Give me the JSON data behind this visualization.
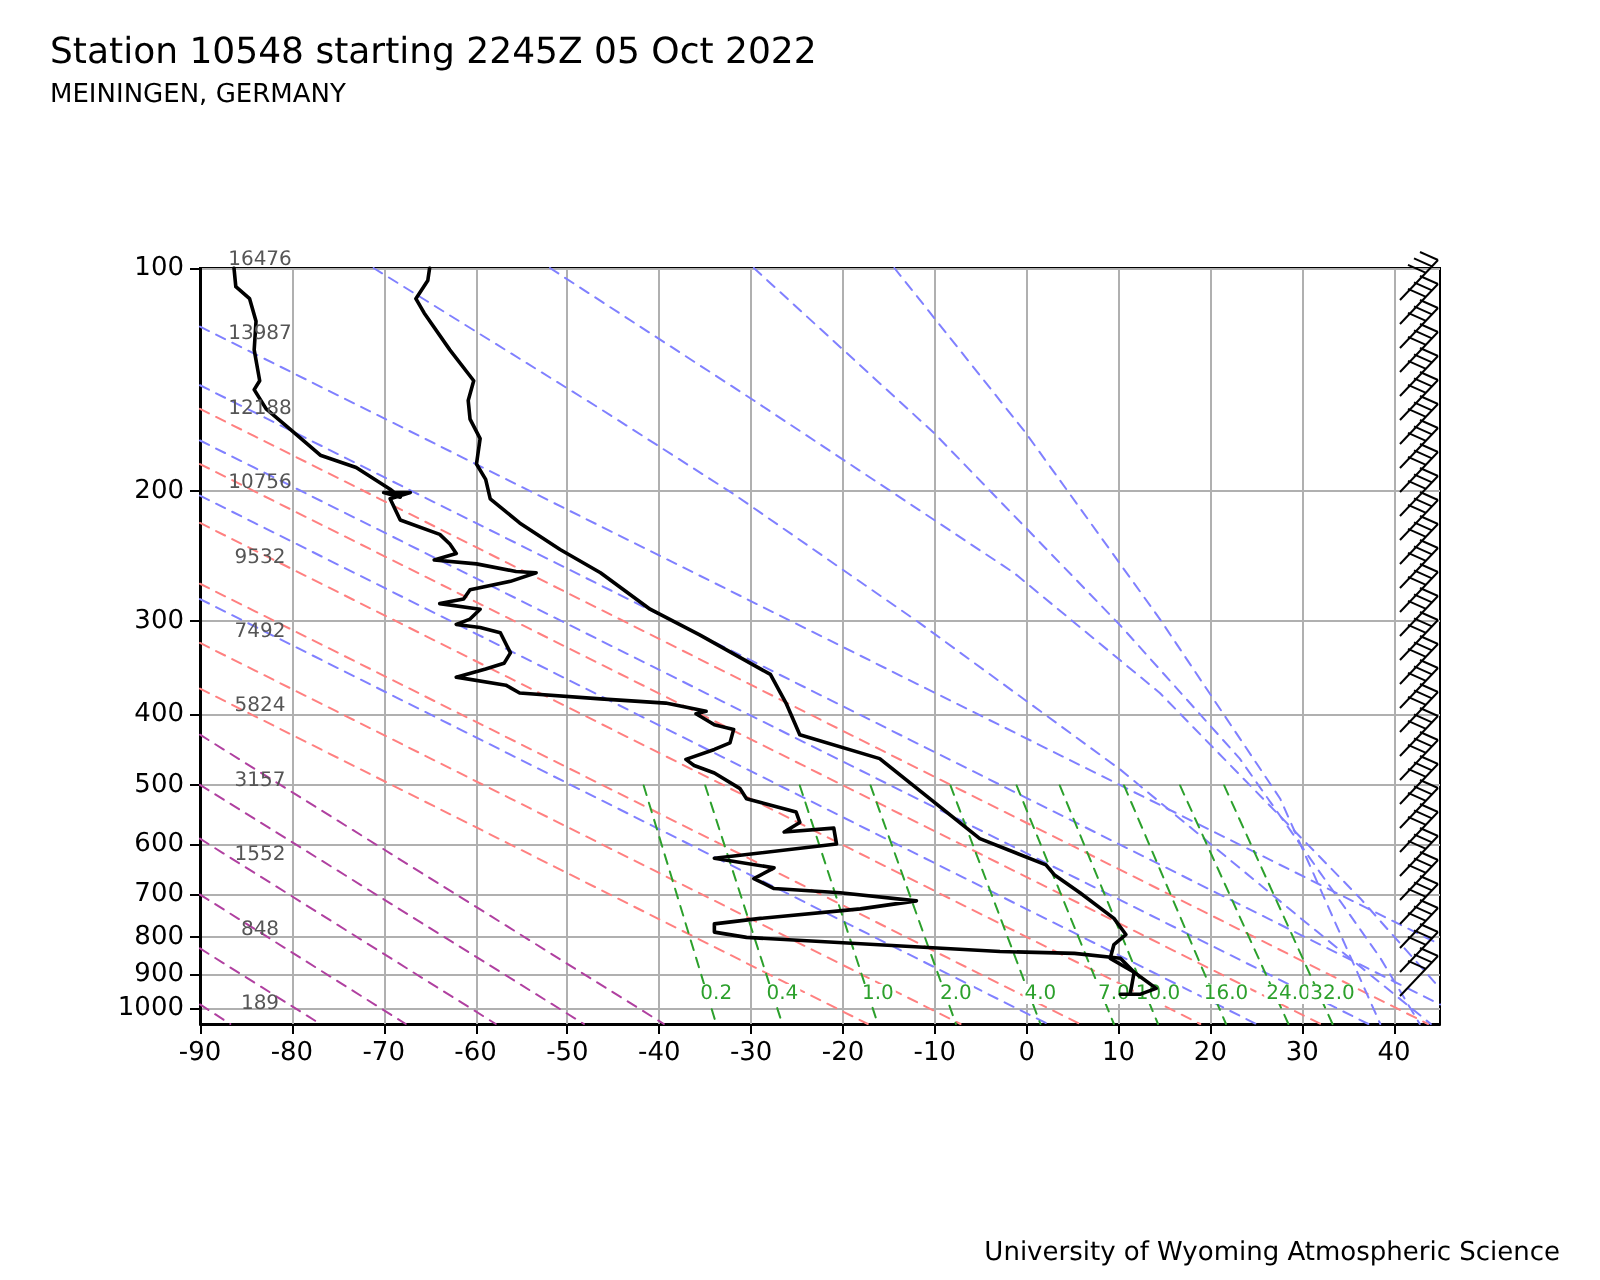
{
  "chart_data": {
    "type": "line",
    "title": "Station 10548 starting 2245Z 05 Oct 2022",
    "subtitle": "MEININGEN, GERMANY",
    "xlim": [
      -90,
      45
    ],
    "xticks": [
      -90,
      -80,
      -70,
      -60,
      -50,
      -40,
      -30,
      -20,
      -10,
      0,
      10,
      20,
      30,
      40
    ],
    "ylim": [
      1050,
      100
    ],
    "yticks": [
      100,
      200,
      300,
      400,
      500,
      600,
      700,
      800,
      900,
      1000
    ],
    "log": "y",
    "grid": true,
    "marker": "none",
    "annotations": [
      "16476",
      "13987",
      "12188",
      "10756",
      "9532",
      "7492",
      "5824",
      "3157",
      "1552",
      "848",
      "189",
      "University of Wyoming Atmospheric Science"
    ],
    "series": [
      {
        "color": "#ff8080",
        "line_style": "dashed",
        "x": [
          -90,
          43.7
        ],
        "values": [
          155,
          1050
        ]
      },
      {
        "color": "#ff8080",
        "line_style": "dashed",
        "x": [
          -90,
          32.0
        ],
        "values": [
          184,
          1050
        ]
      },
      {
        "color": "#ff8080",
        "line_style": "dashed",
        "x": [
          -90,
          18.9
        ],
        "values": [
          221,
          1050
        ]
      },
      {
        "color": "#ff8080",
        "line_style": "dashed",
        "x": [
          -90,
          5.8
        ],
        "values": [
          267,
          1050
        ]
      },
      {
        "color": "#ff8080",
        "line_style": "dashed",
        "x": [
          -90,
          -7.2
        ],
        "values": [
          321,
          1050
        ]
      },
      {
        "color": "#ff8080",
        "line_style": "dashed",
        "x": [
          -90,
          -17.3
        ],
        "values": [
          370,
          1050
        ]
      },
      {
        "color": "#b040a0",
        "line_style": "dashed",
        "x": [
          -90,
          -39.5
        ],
        "values": [
          427,
          1050
        ]
      },
      {
        "color": "#b040a0",
        "line_style": "dashed",
        "x": [
          -90,
          -48.2
        ],
        "values": [
          499,
          1050
        ]
      },
      {
        "color": "#b040a0",
        "line_style": "dashed",
        "x": [
          -90,
          -57.8
        ],
        "values": [
          590,
          1050
        ]
      },
      {
        "color": "#b040a0",
        "line_style": "dashed",
        "x": [
          -90,
          -67.6
        ],
        "values": [
          702,
          1050
        ]
      },
      {
        "color": "#b040a0",
        "line_style": "dashed",
        "x": [
          -90,
          -76.9
        ],
        "values": [
          830,
          1050
        ]
      },
      {
        "color": "#b040a0",
        "line_style": "dashed",
        "x": [
          -90,
          -86.7
        ],
        "values": [
          988,
          1050
        ]
      },
      {
        "color": "#8080ff",
        "line_style": "dashed",
        "x": [
          -90,
          45
        ],
        "values": [
          120,
          820
        ]
      },
      {
        "color": "#8080ff",
        "line_style": "dashed",
        "x": [
          -90,
          45
        ],
        "values": [
          144,
          988
        ]
      },
      {
        "color": "#8080ff",
        "line_style": "dashed",
        "x": [
          -90,
          37.2
        ],
        "values": [
          171,
          1050
        ]
      },
      {
        "color": "#8080ff",
        "line_style": "dashed",
        "x": [
          -90,
          25.0
        ],
        "values": [
          203,
          1050
        ]
      },
      {
        "color": "#8080ff",
        "line_style": "dashed",
        "x": [
          -90,
          2.3
        ],
        "values": [
          280,
          1050
        ]
      },
      {
        "color": "#8080ff",
        "line_style": "dashed",
        "x": [
          -71.1,
          -46.4,
          -31.9,
          -11.6,
          10.2,
          29.8,
          44
        ],
        "values": [
          100,
          155,
          202,
          302,
          476,
          755,
          1050
        ]
      },
      {
        "color": "#8080ff",
        "line_style": "dashed",
        "x": [
          -51.9,
          -29.7,
          -1.4,
          14.5,
          36.3,
          45
        ],
        "values": [
          100,
          151,
          258,
          375,
          710,
          940
        ]
      },
      {
        "color": "#8080ff",
        "line_style": "dashed",
        "x": [
          -29.7,
          -10.1,
          10.2,
          23.2,
          38.5,
          42.8
        ],
        "values": [
          100,
          167,
          304,
          460,
          855,
          1050
        ]
      },
      {
        "color": "#8080ff",
        "line_style": "dashed",
        "x": [
          -14.4,
          -0.1,
          14.5,
          27.6,
          38.5
        ],
        "values": [
          100,
          167,
          298,
          521,
          1050
        ]
      },
      {
        "name": "0.2",
        "color": "#2ca02c",
        "line_style": "dashed",
        "x": [
          -41.7,
          -33.8
        ],
        "values": [
          500,
          1050
        ]
      },
      {
        "name": "0.4",
        "color": "#2ca02c",
        "line_style": "dashed",
        "x": [
          -35.0,
          -26.6
        ],
        "values": [
          500,
          1050
        ]
      },
      {
        "name": "1.0",
        "color": "#2ca02c",
        "line_style": "dashed",
        "x": [
          -24.7,
          -16.2
        ],
        "values": [
          500,
          1050
        ]
      },
      {
        "name": "2.0",
        "color": "#2ca02c",
        "line_style": "dashed",
        "x": [
          -17.0,
          -7.7
        ],
        "values": [
          500,
          1050
        ]
      },
      {
        "name": "4.0",
        "color": "#2ca02c",
        "line_style": "dashed",
        "x": [
          -8.3,
          1.5
        ],
        "values": [
          500,
          1050
        ]
      },
      {
        "name": "7.0",
        "color": "#2ca02c",
        "line_style": "dashed",
        "x": [
          -1.1,
          9.5
        ],
        "values": [
          500,
          1050
        ]
      },
      {
        "name": "10.0",
        "color": "#2ca02c",
        "line_style": "dashed",
        "x": [
          3.6,
          14.3
        ],
        "values": [
          500,
          1050
        ]
      },
      {
        "name": "16.0",
        "color": "#2ca02c",
        "line_style": "dashed",
        "x": [
          10.6,
          21.7
        ],
        "values": [
          500,
          1050
        ]
      },
      {
        "name": "24.0",
        "color": "#2ca02c",
        "line_style": "dashed",
        "x": [
          16.7,
          28.5
        ],
        "values": [
          500,
          1050
        ]
      },
      {
        "name": "32.0",
        "color": "#2ca02c",
        "line_style": "dashed",
        "x": [
          21.5,
          33.3
        ],
        "values": [
          500,
          1050
        ]
      },
      {
        "color": "#000000",
        "line_style": "solid",
        "x": [
          -65,
          -65.2,
          -66.5,
          -65.6,
          -62.8,
          -60.2,
          -60.8,
          -60.6,
          -59.5,
          -59.9,
          -58.9,
          -58.4,
          -55.2,
          -50.8,
          -46.4,
          -41,
          -35.6,
          -27.9,
          -26.2,
          -24.7,
          -16,
          -5.1,
          2.1,
          3.0,
          5.8,
          9.5,
          10.8,
          9.5,
          9.1,
          11.7,
          14.1,
          12.4,
          10.2
        ],
        "values": [
          100,
          104,
          110,
          115,
          129,
          142,
          151,
          160,
          170,
          184,
          193,
          205,
          221,
          240,
          258,
          289,
          313,
          354,
          387,
          427,
          460,
          590,
          640,
          660,
          698,
          756,
          795,
          820,
          856,
          894,
          940,
          957,
          957
        ]
      },
      {
        "color": "#000000",
        "line_style": "solid",
        "x": [
          -86.3,
          -86.1,
          -84.6,
          -83.9,
          -84.1,
          -83.5,
          -84.1,
          -82.8,
          -80.2,
          -76.9,
          -73,
          -69.3,
          -68.2,
          -70,
          -67.1,
          -69.3,
          -68.2,
          -63.9,
          -62.8,
          -62.1,
          -64.5,
          -59.9,
          -55.6,
          -53.4,
          -56.2,
          -60.6,
          -61.3,
          -63.9,
          -59.5,
          -60.6,
          -62.1,
          -59.5,
          -57.3,
          -56.2,
          -56.9,
          -58.9,
          -62.1,
          -56.7,
          -55.2,
          -46.4,
          -39.3,
          -34.9,
          -36.0,
          -34.0,
          -31.9,
          -32.3,
          -34.0,
          -37.1,
          -36.2,
          -34.0,
          -31.2,
          -30.5,
          -25.1,
          -24.7,
          -26.4,
          -21.0,
          -20.7,
          -34.0,
          -27.5,
          -29.7,
          -27.5,
          -20.3,
          -12.0,
          -18.1,
          -29.0,
          -34.0,
          -34.0,
          -30.5,
          -2.9,
          5.2,
          10.2,
          11.7,
          11.3
        ],
        "values": [
          100,
          106,
          110,
          118,
          129,
          142,
          146,
          155,
          165,
          179,
          186,
          199,
          204,
          201,
          201,
          205,
          219,
          229,
          236,
          243,
          248,
          251,
          257,
          258,
          265,
          272,
          280,
          284,
          289,
          298,
          303,
          306,
          311,
          331,
          342,
          348,
          357,
          366,
          375,
          382,
          387,
          397,
          400,
          414,
          420,
          438,
          447,
          461,
          470,
          481,
          505,
          521,
          543,
          561,
          578,
          571,
          600,
          627,
          646,
          668,
          689,
          698,
          716,
          734,
          756,
          769,
          789,
          802,
          838,
          843,
          856,
          894,
          952
        ]
      }
    ]
  }
}
